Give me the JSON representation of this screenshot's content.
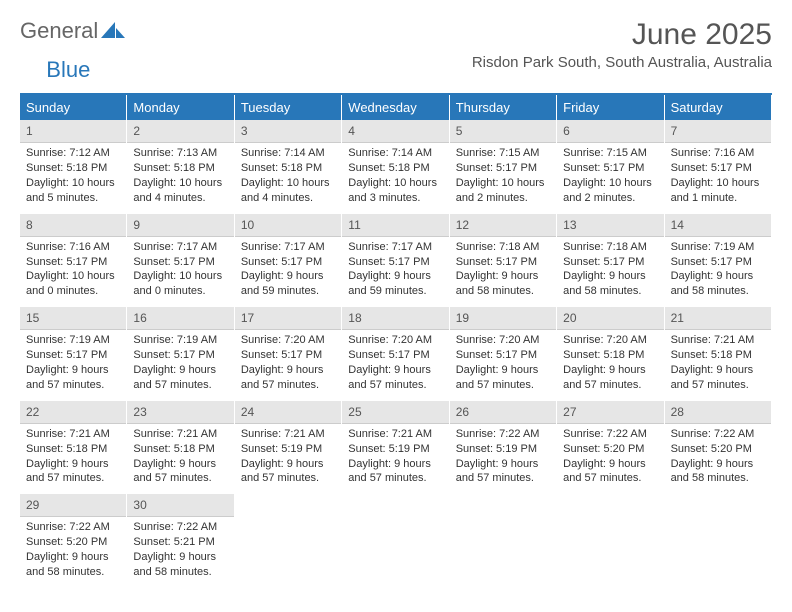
{
  "logo": {
    "text_general": "General",
    "text_blue": "Blue"
  },
  "title": "June 2025",
  "location": "Risdon Park South, South Australia, Australia",
  "colors": {
    "header_bg": "#2877b9",
    "header_text": "#ffffff",
    "day_num_bg": "#e6e6e6",
    "text": "#333333",
    "title_text": "#555555"
  },
  "day_headers": [
    "Sunday",
    "Monday",
    "Tuesday",
    "Wednesday",
    "Thursday",
    "Friday",
    "Saturday"
  ],
  "days": [
    {
      "n": "1",
      "sunrise": "7:12 AM",
      "sunset": "5:18 PM",
      "daylight": "10 hours and 5 minutes."
    },
    {
      "n": "2",
      "sunrise": "7:13 AM",
      "sunset": "5:18 PM",
      "daylight": "10 hours and 4 minutes."
    },
    {
      "n": "3",
      "sunrise": "7:14 AM",
      "sunset": "5:18 PM",
      "daylight": "10 hours and 4 minutes."
    },
    {
      "n": "4",
      "sunrise": "7:14 AM",
      "sunset": "5:18 PM",
      "daylight": "10 hours and 3 minutes."
    },
    {
      "n": "5",
      "sunrise": "7:15 AM",
      "sunset": "5:17 PM",
      "daylight": "10 hours and 2 minutes."
    },
    {
      "n": "6",
      "sunrise": "7:15 AM",
      "sunset": "5:17 PM",
      "daylight": "10 hours and 2 minutes."
    },
    {
      "n": "7",
      "sunrise": "7:16 AM",
      "sunset": "5:17 PM",
      "daylight": "10 hours and 1 minute."
    },
    {
      "n": "8",
      "sunrise": "7:16 AM",
      "sunset": "5:17 PM",
      "daylight": "10 hours and 0 minutes."
    },
    {
      "n": "9",
      "sunrise": "7:17 AM",
      "sunset": "5:17 PM",
      "daylight": "10 hours and 0 minutes."
    },
    {
      "n": "10",
      "sunrise": "7:17 AM",
      "sunset": "5:17 PM",
      "daylight": "9 hours and 59 minutes."
    },
    {
      "n": "11",
      "sunrise": "7:17 AM",
      "sunset": "5:17 PM",
      "daylight": "9 hours and 59 minutes."
    },
    {
      "n": "12",
      "sunrise": "7:18 AM",
      "sunset": "5:17 PM",
      "daylight": "9 hours and 58 minutes."
    },
    {
      "n": "13",
      "sunrise": "7:18 AM",
      "sunset": "5:17 PM",
      "daylight": "9 hours and 58 minutes."
    },
    {
      "n": "14",
      "sunrise": "7:19 AM",
      "sunset": "5:17 PM",
      "daylight": "9 hours and 58 minutes."
    },
    {
      "n": "15",
      "sunrise": "7:19 AM",
      "sunset": "5:17 PM",
      "daylight": "9 hours and 57 minutes."
    },
    {
      "n": "16",
      "sunrise": "7:19 AM",
      "sunset": "5:17 PM",
      "daylight": "9 hours and 57 minutes."
    },
    {
      "n": "17",
      "sunrise": "7:20 AM",
      "sunset": "5:17 PM",
      "daylight": "9 hours and 57 minutes."
    },
    {
      "n": "18",
      "sunrise": "7:20 AM",
      "sunset": "5:17 PM",
      "daylight": "9 hours and 57 minutes."
    },
    {
      "n": "19",
      "sunrise": "7:20 AM",
      "sunset": "5:17 PM",
      "daylight": "9 hours and 57 minutes."
    },
    {
      "n": "20",
      "sunrise": "7:20 AM",
      "sunset": "5:18 PM",
      "daylight": "9 hours and 57 minutes."
    },
    {
      "n": "21",
      "sunrise": "7:21 AM",
      "sunset": "5:18 PM",
      "daylight": "9 hours and 57 minutes."
    },
    {
      "n": "22",
      "sunrise": "7:21 AM",
      "sunset": "5:18 PM",
      "daylight": "9 hours and 57 minutes."
    },
    {
      "n": "23",
      "sunrise": "7:21 AM",
      "sunset": "5:18 PM",
      "daylight": "9 hours and 57 minutes."
    },
    {
      "n": "24",
      "sunrise": "7:21 AM",
      "sunset": "5:19 PM",
      "daylight": "9 hours and 57 minutes."
    },
    {
      "n": "25",
      "sunrise": "7:21 AM",
      "sunset": "5:19 PM",
      "daylight": "9 hours and 57 minutes."
    },
    {
      "n": "26",
      "sunrise": "7:22 AM",
      "sunset": "5:19 PM",
      "daylight": "9 hours and 57 minutes."
    },
    {
      "n": "27",
      "sunrise": "7:22 AM",
      "sunset": "5:20 PM",
      "daylight": "9 hours and 57 minutes."
    },
    {
      "n": "28",
      "sunrise": "7:22 AM",
      "sunset": "5:20 PM",
      "daylight": "9 hours and 58 minutes."
    },
    {
      "n": "29",
      "sunrise": "7:22 AM",
      "sunset": "5:20 PM",
      "daylight": "9 hours and 58 minutes."
    },
    {
      "n": "30",
      "sunrise": "7:22 AM",
      "sunset": "5:21 PM",
      "daylight": "9 hours and 58 minutes."
    }
  ],
  "labels": {
    "sunrise": "Sunrise:",
    "sunset": "Sunset:",
    "daylight": "Daylight:"
  }
}
